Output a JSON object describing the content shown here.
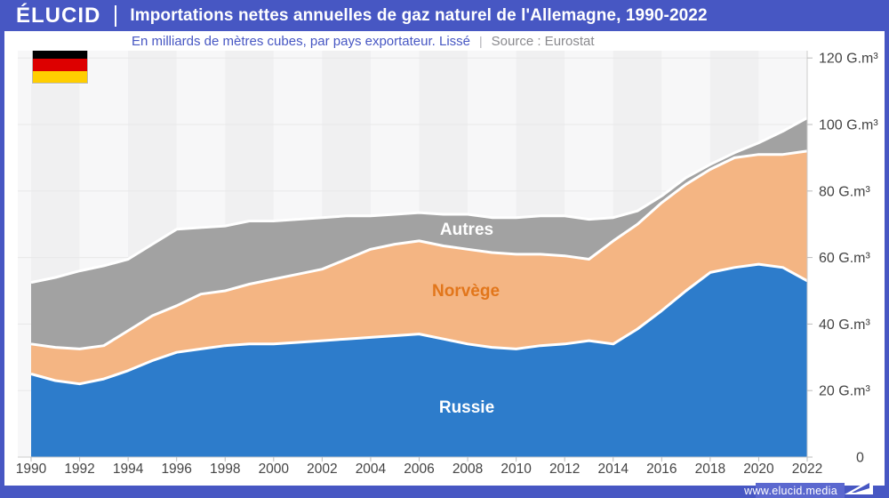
{
  "header": {
    "logo": "ÉLUCID",
    "title": "Importations nettes annuelles de gaz naturel de l'Allemagne, 1990-2022"
  },
  "subtitle": {
    "description": "En milliards de mètres cubes, par pays exportateur. Lissé",
    "separator": "|",
    "source": "Source : Eurostat"
  },
  "footer": {
    "url": "www.elucid.media"
  },
  "flag": {
    "country": "germany",
    "stripe_colors": [
      "#000000",
      "#dd0000",
      "#ffce00"
    ]
  },
  "colors": {
    "brand_blue": "#4757c3",
    "footer_light_blue": "#5b68cf",
    "russia_blue": "#2d7ccb",
    "norway_orange": "#f4b583",
    "norway_label_orange": "#e2761b",
    "others_gray": "#a2a2a2",
    "axis_text": "#454545",
    "axis_line": "#cccccc",
    "gridline": "#e8e8e9",
    "stripe_light": "#f7f7f8",
    "stripe_dark": "#f0f0f1"
  },
  "chart_data": {
    "type": "area",
    "stacked": true,
    "title": "Importations nettes annuelles de gaz naturel de l'Allemagne, 1990-2022",
    "xlabel": "",
    "ylabel": "G.m³",
    "ylim": [
      0,
      125
    ],
    "grid": "horizontal",
    "legend_position": "labels-inside-areas",
    "x": [
      1990,
      1991,
      1992,
      1993,
      1994,
      1995,
      1996,
      1997,
      1998,
      1999,
      2000,
      2001,
      2002,
      2003,
      2004,
      2005,
      2006,
      2007,
      2008,
      2009,
      2010,
      2011,
      2012,
      2013,
      2014,
      2015,
      2016,
      2017,
      2018,
      2019,
      2020,
      2021,
      2022
    ],
    "series": [
      {
        "name": "Russie",
        "color": "#2d7ccb",
        "label_color": "#ffffff",
        "values": [
          25,
          23,
          22,
          23.5,
          26,
          29,
          31.5,
          32.5,
          33.5,
          34,
          34,
          34.5,
          35,
          35.5,
          36,
          36.5,
          37,
          35.5,
          34,
          33,
          32.5,
          33.5,
          34,
          35,
          34,
          38.5,
          44,
          50,
          55.5,
          57,
          58,
          57,
          53
        ]
      },
      {
        "name": "Norvège",
        "color": "#f4b583",
        "label_color": "#e2761b",
        "values": [
          9,
          10,
          10.5,
          10,
          12,
          13.5,
          14,
          16.5,
          16.5,
          18,
          19.5,
          20.5,
          21.5,
          24,
          26.5,
          27.5,
          28,
          28,
          28.5,
          28.5,
          28.5,
          27.5,
          26.5,
          24.5,
          31,
          31.5,
          32.5,
          32,
          31,
          33,
          33,
          34,
          39
        ]
      },
      {
        "name": "Autres",
        "color": "#a2a2a2",
        "label_color": "#ffffff",
        "values": [
          18.5,
          21,
          23.5,
          24,
          21.5,
          21.5,
          23,
          20,
          19.5,
          19,
          17.5,
          16.5,
          15.5,
          13,
          10,
          9,
          8.5,
          9.5,
          10.5,
          10.5,
          11,
          11.5,
          12,
          12,
          7,
          4,
          2,
          2,
          1.5,
          1.5,
          3.5,
          7,
          10
        ]
      }
    ],
    "y_ticks": [
      {
        "value": 0,
        "label": "0"
      },
      {
        "value": 20,
        "label": "20 G.m³"
      },
      {
        "value": 40,
        "label": "40 G.m³"
      },
      {
        "value": 60,
        "label": "60 G.m³"
      },
      {
        "value": 80,
        "label": "80 G.m³"
      },
      {
        "value": 100,
        "label": "100 G.m³"
      },
      {
        "value": 120,
        "label": "120 G.m³"
      }
    ],
    "x_tick_step": 2
  }
}
